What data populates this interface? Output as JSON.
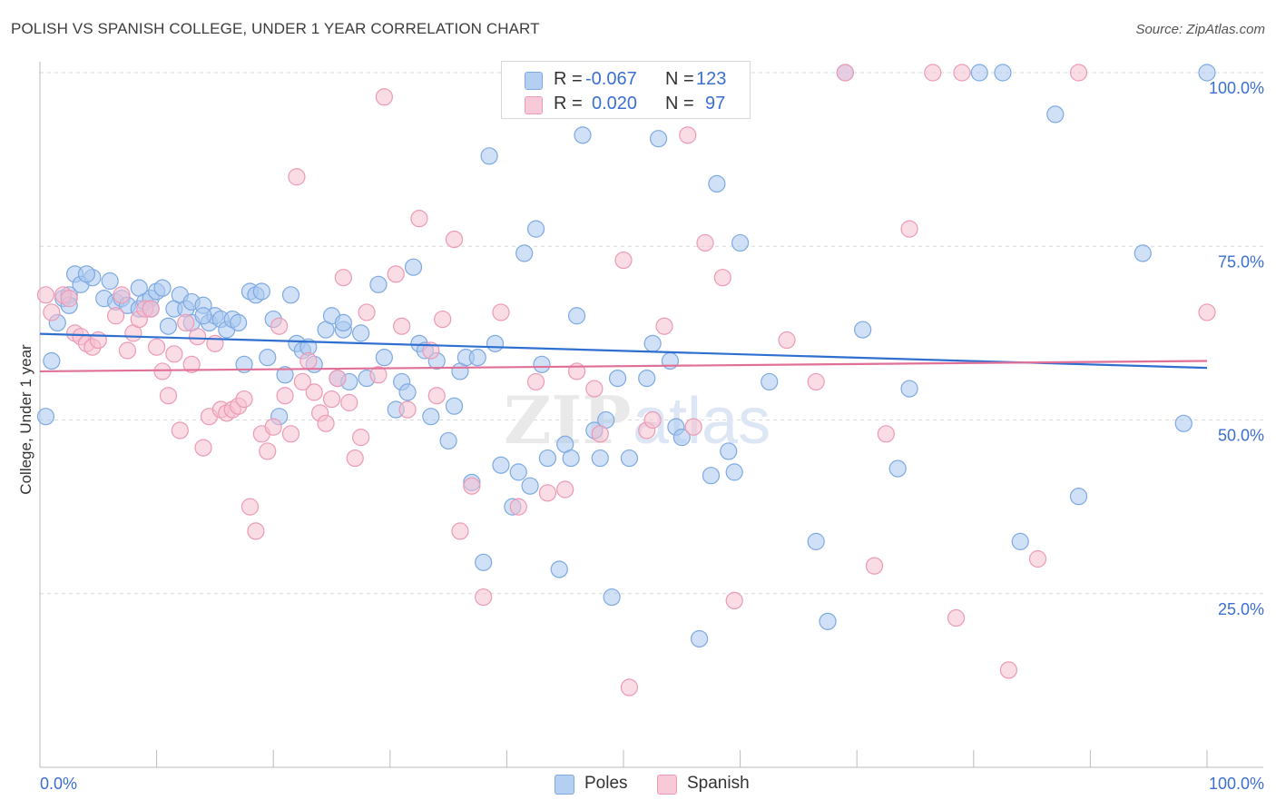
{
  "header": {
    "title": "POLISH VS SPANISH COLLEGE, UNDER 1 YEAR CORRELATION CHART",
    "source": "Source: ZipAtlas.com"
  },
  "legend": {
    "rows": [
      {
        "r_label": "R =",
        "r_value": "-0.067",
        "n_label": "N =",
        "n_value": "123"
      },
      {
        "r_label": "R =",
        "r_value": "0.020",
        "n_label": "N =",
        "n_value": "97"
      }
    ]
  },
  "bottom_legend": [
    "Poles",
    "Spanish"
  ],
  "colors": {
    "poles_fill": "#a9c8f0",
    "poles_stroke": "#7ea9e1",
    "poles_line": "#2f6fd0",
    "spanish_fill": "#f6bfd0",
    "spanish_stroke": "#ec9ab5",
    "spanish_line": "#e07098",
    "tick_label": "#3b6fd1",
    "grid": "#d9d9d9"
  },
  "chart_data": {
    "type": "scatter",
    "title": "POLISH VS SPANISH COLLEGE, UNDER 1 YEAR CORRELATION CHART",
    "xlabel": "",
    "ylabel": "College, Under 1 year",
    "xlim": [
      0,
      100
    ],
    "ylim": [
      0,
      100
    ],
    "x_tick_labels": [
      "0.0%",
      "100.0%"
    ],
    "y_ticks": [
      25,
      50,
      75,
      100
    ],
    "y_tick_labels": [
      "25.0%",
      "50.0%",
      "75.0%",
      "100.0%"
    ],
    "grid": true,
    "legend_position": "top-center",
    "watermark": "ZIPatlas",
    "series": [
      {
        "name": "Poles",
        "R": -0.067,
        "N": 123,
        "trend": {
          "x": [
            0,
            100
          ],
          "y": [
            62.4,
            57.5
          ]
        },
        "points": [
          [
            1.0,
            58.5
          ],
          [
            0.5,
            50.5
          ],
          [
            1.5,
            64.0
          ],
          [
            2.0,
            67.5
          ],
          [
            2.5,
            68.0
          ],
          [
            3.0,
            71.0
          ],
          [
            3.5,
            69.5
          ],
          [
            4.5,
            70.5
          ],
          [
            5.5,
            67.5
          ],
          [
            6.0,
            70.0
          ],
          [
            6.5,
            67.0
          ],
          [
            7.0,
            67.5
          ],
          [
            7.5,
            66.5
          ],
          [
            8.5,
            66.0
          ],
          [
            8.5,
            69.0
          ],
          [
            9.0,
            67.0
          ],
          [
            9.5,
            67.5
          ],
          [
            10.0,
            68.5
          ],
          [
            10.5,
            69.0
          ],
          [
            11.0,
            63.5
          ],
          [
            11.5,
            66.0
          ],
          [
            12.0,
            68.0
          ],
          [
            12.5,
            66.0
          ],
          [
            13.0,
            67.0
          ],
          [
            14.0,
            66.5
          ],
          [
            14.5,
            64.0
          ],
          [
            15.0,
            65.0
          ],
          [
            15.5,
            64.5
          ],
          [
            16.0,
            63.0
          ],
          [
            16.5,
            64.5
          ],
          [
            17.0,
            64.0
          ],
          [
            17.5,
            58.0
          ],
          [
            18.0,
            68.5
          ],
          [
            18.5,
            68.0
          ],
          [
            19.5,
            59.0
          ],
          [
            20.0,
            64.5
          ],
          [
            20.5,
            50.5
          ],
          [
            21.0,
            56.5
          ],
          [
            21.5,
            68.0
          ],
          [
            22.0,
            61.0
          ],
          [
            22.5,
            60.0
          ],
          [
            23.0,
            60.5
          ],
          [
            23.5,
            58.0
          ],
          [
            24.5,
            63.0
          ],
          [
            25.0,
            65.0
          ],
          [
            25.5,
            56.0
          ],
          [
            26.0,
            63.0
          ],
          [
            26.5,
            55.5
          ],
          [
            27.5,
            62.5
          ],
          [
            28.0,
            56.0
          ],
          [
            29.0,
            69.5
          ],
          [
            29.5,
            59.0
          ],
          [
            30.5,
            51.5
          ],
          [
            31.0,
            55.5
          ],
          [
            31.5,
            54.0
          ],
          [
            32.0,
            72.0
          ],
          [
            32.5,
            61.0
          ],
          [
            33.0,
            60.0
          ],
          [
            33.5,
            50.5
          ],
          [
            34.0,
            58.5
          ],
          [
            35.0,
            47.0
          ],
          [
            35.5,
            52.0
          ],
          [
            36.0,
            57.0
          ],
          [
            36.5,
            59.0
          ],
          [
            37.0,
            41.0
          ],
          [
            37.5,
            59.0
          ],
          [
            38.0,
            29.5
          ],
          [
            38.5,
            88.0
          ],
          [
            39.0,
            61.0
          ],
          [
            39.5,
            43.5
          ],
          [
            40.5,
            37.5
          ],
          [
            41.0,
            42.5
          ],
          [
            41.5,
            74.0
          ],
          [
            42.0,
            40.5
          ],
          [
            42.5,
            77.5
          ],
          [
            43.0,
            58.0
          ],
          [
            43.5,
            44.5
          ],
          [
            44.5,
            28.5
          ],
          [
            45.0,
            46.5
          ],
          [
            45.5,
            44.5
          ],
          [
            46.0,
            65.0
          ],
          [
            46.5,
            91.0
          ],
          [
            47.5,
            48.5
          ],
          [
            48.0,
            44.5
          ],
          [
            48.5,
            50.0
          ],
          [
            49.0,
            24.5
          ],
          [
            49.5,
            56.0
          ],
          [
            50.5,
            44.5
          ],
          [
            51.0,
            100.0
          ],
          [
            52.0,
            56.0
          ],
          [
            52.5,
            61.0
          ],
          [
            53.0,
            90.5
          ],
          [
            54.0,
            58.5
          ],
          [
            54.5,
            49.0
          ],
          [
            55.0,
            47.5
          ],
          [
            56.5,
            18.5
          ],
          [
            57.5,
            42.0
          ],
          [
            58.0,
            84.0
          ],
          [
            59.0,
            45.5
          ],
          [
            59.5,
            42.5
          ],
          [
            60.0,
            75.5
          ],
          [
            62.5,
            55.5
          ],
          [
            66.5,
            32.5
          ],
          [
            67.5,
            21.0
          ],
          [
            69.0,
            100.0
          ],
          [
            70.5,
            63.0
          ],
          [
            73.5,
            43.0
          ],
          [
            74.5,
            54.5
          ],
          [
            80.5,
            100.0
          ],
          [
            82.5,
            100.0
          ],
          [
            84.0,
            32.5
          ],
          [
            87.0,
            94.0
          ],
          [
            89.0,
            39.0
          ],
          [
            94.5,
            74.0
          ],
          [
            98.0,
            49.5
          ],
          [
            100.0,
            100.0
          ],
          [
            2.5,
            66.5
          ],
          [
            4.0,
            71.0
          ],
          [
            9.5,
            66.0
          ],
          [
            13.0,
            64.0
          ],
          [
            14.0,
            65.0
          ],
          [
            19.0,
            68.5
          ],
          [
            26.0,
            64.0
          ]
        ]
      },
      {
        "name": "Spanish",
        "R": 0.02,
        "N": 97,
        "trend": {
          "x": [
            0,
            100
          ],
          "y": [
            57.0,
            58.5
          ]
        },
        "points": [
          [
            0.5,
            68.0
          ],
          [
            1.0,
            65.5
          ],
          [
            2.0,
            68.0
          ],
          [
            2.5,
            67.5
          ],
          [
            3.0,
            62.5
          ],
          [
            3.5,
            62.0
          ],
          [
            4.0,
            61.0
          ],
          [
            4.5,
            60.5
          ],
          [
            5.0,
            61.5
          ],
          [
            6.5,
            65.0
          ],
          [
            7.0,
            68.0
          ],
          [
            7.5,
            60.0
          ],
          [
            8.0,
            62.5
          ],
          [
            8.5,
            64.5
          ],
          [
            9.0,
            66.0
          ],
          [
            9.5,
            66.0
          ],
          [
            10.0,
            60.5
          ],
          [
            10.5,
            57.0
          ],
          [
            11.0,
            53.5
          ],
          [
            11.5,
            59.5
          ],
          [
            12.0,
            48.5
          ],
          [
            12.5,
            64.0
          ],
          [
            13.0,
            58.0
          ],
          [
            13.5,
            62.0
          ],
          [
            14.0,
            46.0
          ],
          [
            14.5,
            50.5
          ],
          [
            15.0,
            61.0
          ],
          [
            15.5,
            51.5
          ],
          [
            16.0,
            51.0
          ],
          [
            16.5,
            51.5
          ],
          [
            17.0,
            52.0
          ],
          [
            17.5,
            53.0
          ],
          [
            18.0,
            37.5
          ],
          [
            18.5,
            34.0
          ],
          [
            19.0,
            48.0
          ],
          [
            19.5,
            45.5
          ],
          [
            20.0,
            49.0
          ],
          [
            20.5,
            63.5
          ],
          [
            21.0,
            53.5
          ],
          [
            21.5,
            48.0
          ],
          [
            22.0,
            85.0
          ],
          [
            22.5,
            55.5
          ],
          [
            23.0,
            58.5
          ],
          [
            23.5,
            54.0
          ],
          [
            24.0,
            51.0
          ],
          [
            24.5,
            49.5
          ],
          [
            25.0,
            53.0
          ],
          [
            25.5,
            56.0
          ],
          [
            26.0,
            70.5
          ],
          [
            26.5,
            52.5
          ],
          [
            27.0,
            44.5
          ],
          [
            27.5,
            47.5
          ],
          [
            28.0,
            65.5
          ],
          [
            29.0,
            56.5
          ],
          [
            29.5,
            96.5
          ],
          [
            30.5,
            71.0
          ],
          [
            31.0,
            63.5
          ],
          [
            31.5,
            51.5
          ],
          [
            32.5,
            79.0
          ],
          [
            33.5,
            60.0
          ],
          [
            34.0,
            53.5
          ],
          [
            34.5,
            64.5
          ],
          [
            35.5,
            76.0
          ],
          [
            36.0,
            34.0
          ],
          [
            37.0,
            40.5
          ],
          [
            38.0,
            24.5
          ],
          [
            39.5,
            65.5
          ],
          [
            41.0,
            37.5
          ],
          [
            42.5,
            55.5
          ],
          [
            43.5,
            39.5
          ],
          [
            45.0,
            40.0
          ],
          [
            46.0,
            57.0
          ],
          [
            47.5,
            54.5
          ],
          [
            48.0,
            48.0
          ],
          [
            50.0,
            73.0
          ],
          [
            50.5,
            11.5
          ],
          [
            52.0,
            48.5
          ],
          [
            52.5,
            50.0
          ],
          [
            53.5,
            63.5
          ],
          [
            55.5,
            91.0
          ],
          [
            56.0,
            49.0
          ],
          [
            57.0,
            75.5
          ],
          [
            58.5,
            70.5
          ],
          [
            59.5,
            24.0
          ],
          [
            64.0,
            61.5
          ],
          [
            66.5,
            55.5
          ],
          [
            69.0,
            100.0
          ],
          [
            71.5,
            29.0
          ],
          [
            72.5,
            48.0
          ],
          [
            74.5,
            77.5
          ],
          [
            76.5,
            100.0
          ],
          [
            78.5,
            21.5
          ],
          [
            79.0,
            100.0
          ],
          [
            83.0,
            14.0
          ],
          [
            85.5,
            30.0
          ],
          [
            89.0,
            100.0
          ],
          [
            100.0,
            65.5
          ]
        ]
      }
    ]
  }
}
